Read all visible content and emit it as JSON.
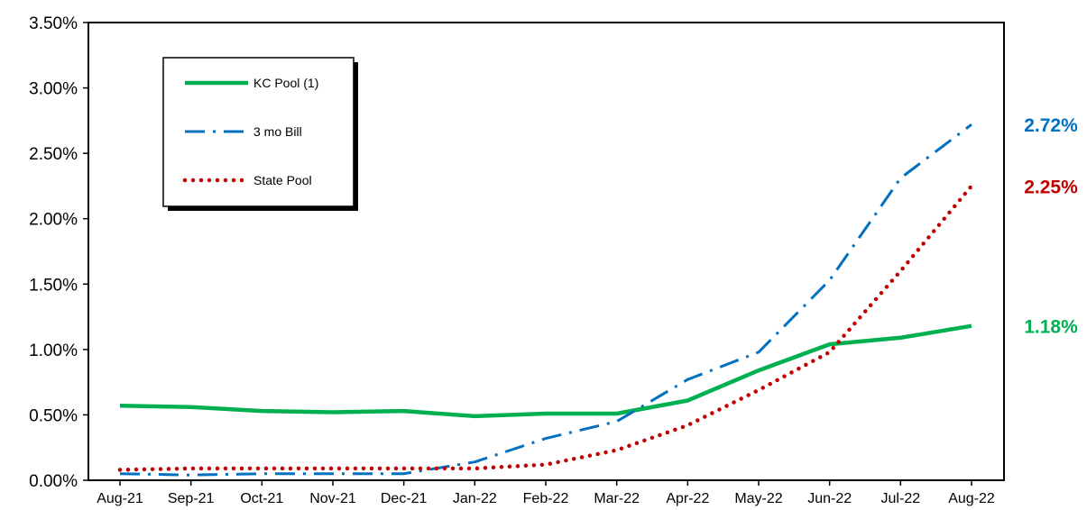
{
  "chart_data": {
    "type": "line",
    "title": "",
    "xlabel": "",
    "ylabel": "",
    "categories": [
      "Aug-21",
      "Sep-21",
      "Oct-21",
      "Nov-21",
      "Dec-21",
      "Jan-22",
      "Feb-22",
      "Mar-22",
      "Apr-22",
      "May-22",
      "Jun-22",
      "Jul-22",
      "Aug-22"
    ],
    "ylim": [
      0,
      3.5
    ],
    "yticks": [
      "0.00%",
      "0.50%",
      "1.00%",
      "1.50%",
      "2.00%",
      "2.50%",
      "3.00%",
      "3.50%"
    ],
    "grid": false,
    "legend_position": "top-left",
    "series": [
      {
        "name": "KC Pool (1)",
        "color": "#00b050",
        "style": "solid",
        "values": [
          0.57,
          0.56,
          0.53,
          0.52,
          0.53,
          0.49,
          0.51,
          0.51,
          0.61,
          0.84,
          1.04,
          1.09,
          1.18
        ],
        "end_label": "1.18%"
      },
      {
        "name": "3 mo Bill",
        "color": "#0070c0",
        "style": "dashdot",
        "values": [
          0.05,
          0.04,
          0.05,
          0.05,
          0.05,
          0.14,
          0.32,
          0.45,
          0.77,
          0.98,
          1.53,
          2.31,
          2.72
        ],
        "end_label": "2.72%"
      },
      {
        "name": "State Pool",
        "color": "#c00000",
        "style": "dotted",
        "values": [
          0.08,
          0.09,
          0.09,
          0.09,
          0.09,
          0.09,
          0.12,
          0.23,
          0.42,
          0.69,
          0.98,
          1.6,
          2.25
        ],
        "end_label": "2.25%"
      }
    ]
  }
}
